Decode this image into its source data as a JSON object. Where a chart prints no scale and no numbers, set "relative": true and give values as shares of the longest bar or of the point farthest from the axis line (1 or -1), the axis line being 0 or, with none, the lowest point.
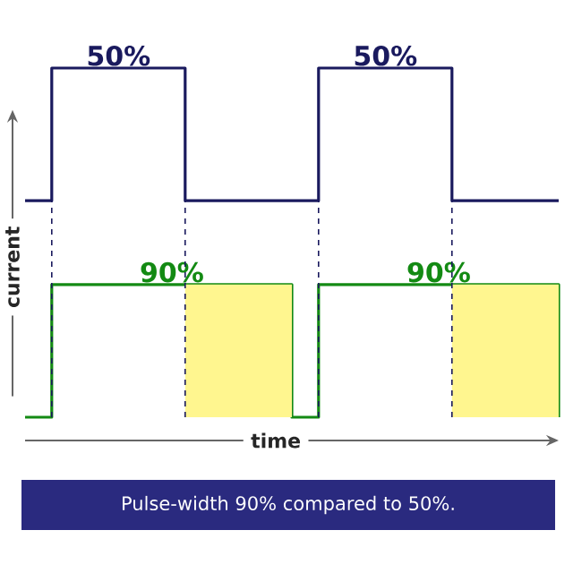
{
  "chart_data": {
    "type": "step",
    "relative": true,
    "xlabel": "time",
    "ylabel": "current",
    "categories": [
      null,
      null,
      null,
      null,
      null,
      null,
      null,
      null,
      null,
      null,
      null,
      null,
      null,
      null,
      null,
      null,
      null,
      null,
      null,
      null,
      null
    ],
    "series": [
      {
        "color": "#1a1a5e",
        "values": [
          0.62,
          1,
          1,
          1,
          1,
          1,
          0.62,
          0.62,
          0.62,
          0.62,
          0.62,
          1,
          1,
          1,
          1,
          1,
          0.62,
          0.62,
          0.62,
          0.62,
          0.62
        ]
      },
      {
        "color": "#138a13",
        "values": [
          0,
          0.38,
          0.38,
          0.38,
          0.38,
          0.38,
          0.38,
          0.38,
          0.38,
          0.38,
          0,
          0.38,
          0.38,
          0.38,
          0.38,
          0.38,
          0.38,
          0.38,
          0.38,
          0.38,
          0
        ]
      }
    ],
    "annotations": [
      {
        "text": "50%",
        "y": 1
      },
      {
        "text": "50%",
        "y": 1
      },
      {
        "text": "90%",
        "y": 0.38
      },
      {
        "text": "90%",
        "y": 0.38
      },
      "Pulse-width 90% compared to 50%."
    ]
  }
}
